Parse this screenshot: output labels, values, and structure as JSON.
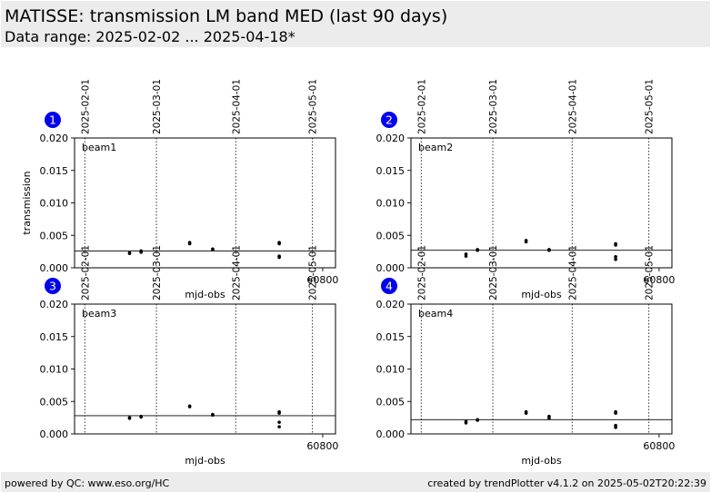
{
  "header": {
    "title": "MATISSE: transmission LM band MED (last 90 days)",
    "subtitle": "Data range: 2025-02-02 ... 2025-04-18*"
  },
  "footer": {
    "left": "powered by QC: www.eso.org/HC",
    "right": "created by trendPlotter v4.1.2 on 2025-05-02T20:22:39"
  },
  "colors": {
    "badge": "#0000ee",
    "panel_bg": "#ececec"
  },
  "chart_data": [
    {
      "type": "scatter",
      "badge": "1",
      "name": "beam1",
      "xlabel": "mjd-obs",
      "ylabel": "transmission",
      "xlim": [
        60703,
        60805
      ],
      "ylim": [
        0,
        0.02
      ],
      "yticks": [
        0,
        0.005,
        0.01,
        0.015,
        0.02
      ],
      "ytick_labels": [
        "0.000",
        "0.005",
        "0.010",
        "0.015",
        "0.020"
      ],
      "xticks": [
        60800
      ],
      "xtick_labels": [
        "60800"
      ],
      "date_marks": [
        {
          "x": 60707,
          "label": "2025-02-01"
        },
        {
          "x": 60735,
          "label": "2025-03-01"
        },
        {
          "x": 60766,
          "label": "2025-04-01"
        },
        {
          "x": 60796,
          "label": "2025-05-01"
        }
      ],
      "reference": 0.0026,
      "x": [
        60724.5,
        60724.5,
        60729,
        60729,
        60748,
        60748,
        60757,
        60757,
        60783,
        60783,
        60783,
        60783
      ],
      "y": [
        0.0022,
        0.0023,
        0.0024,
        0.0026,
        0.0037,
        0.0039,
        0.0028,
        0.0029,
        0.0037,
        0.0039,
        0.0016,
        0.0018
      ]
    },
    {
      "type": "scatter",
      "badge": "2",
      "name": "beam2",
      "xlabel": "mjd-obs",
      "ylabel": "",
      "xlim": [
        60703,
        60805
      ],
      "ylim": [
        0,
        0.02
      ],
      "yticks": [
        0,
        0.005,
        0.01,
        0.015,
        0.02
      ],
      "ytick_labels": [
        "0.000",
        "0.005",
        "0.010",
        "0.015",
        "0.020"
      ],
      "xticks": [
        60800
      ],
      "xtick_labels": [
        "60800"
      ],
      "date_marks": [
        {
          "x": 60707,
          "label": "2025-02-01"
        },
        {
          "x": 60735,
          "label": "2025-03-01"
        },
        {
          "x": 60766,
          "label": "2025-04-01"
        },
        {
          "x": 60796,
          "label": "2025-05-01"
        }
      ],
      "reference": 0.0027,
      "x": [
        60724.5,
        60724.5,
        60729,
        60729,
        60748,
        60748,
        60757,
        60757,
        60783,
        60783,
        60783,
        60783
      ],
      "y": [
        0.0018,
        0.0021,
        0.0027,
        0.0028,
        0.004,
        0.0042,
        0.0027,
        0.0028,
        0.0035,
        0.0037,
        0.0013,
        0.0017
      ]
    },
    {
      "type": "scatter",
      "badge": "3",
      "name": "beam3",
      "xlabel": "mjd-obs",
      "ylabel": "",
      "xlim": [
        60703,
        60805
      ],
      "ylim": [
        0,
        0.02
      ],
      "yticks": [
        0,
        0.005,
        0.01,
        0.015,
        0.02
      ],
      "ytick_labels": [
        "0.000",
        "0.005",
        "0.010",
        "0.015",
        "0.020"
      ],
      "xticks": [
        60800
      ],
      "xtick_labels": [
        "60800"
      ],
      "date_marks": [
        {
          "x": 60707,
          "label": "2025-02-01"
        },
        {
          "x": 60735,
          "label": "2025-03-01"
        },
        {
          "x": 60766,
          "label": "2025-04-01"
        },
        {
          "x": 60796,
          "label": "2025-05-01"
        }
      ],
      "reference": 0.0028,
      "x": [
        60724.5,
        60724.5,
        60729,
        60729,
        60748,
        60748,
        60757,
        60757,
        60783,
        60783,
        60783,
        60783
      ],
      "y": [
        0.0024,
        0.0025,
        0.0026,
        0.0027,
        0.0042,
        0.0043,
        0.0029,
        0.003,
        0.0032,
        0.0034,
        0.0011,
        0.0018
      ]
    },
    {
      "type": "scatter",
      "badge": "4",
      "name": "beam4",
      "xlabel": "mjd-obs",
      "ylabel": "",
      "xlim": [
        60703,
        60805
      ],
      "ylim": [
        0,
        0.02
      ],
      "yticks": [
        0,
        0.005,
        0.01,
        0.015,
        0.02
      ],
      "ytick_labels": [
        "0.000",
        "0.005",
        "0.010",
        "0.015",
        "0.020"
      ],
      "xticks": [
        60800
      ],
      "xtick_labels": [
        "60800"
      ],
      "date_marks": [
        {
          "x": 60707,
          "label": "2025-02-01"
        },
        {
          "x": 60735,
          "label": "2025-03-01"
        },
        {
          "x": 60766,
          "label": "2025-04-01"
        },
        {
          "x": 60796,
          "label": "2025-05-01"
        }
      ],
      "reference": 0.0022,
      "x": [
        60724.5,
        60724.5,
        60729,
        60729,
        60748,
        60748,
        60757,
        60757,
        60783,
        60783,
        60783,
        60783
      ],
      "y": [
        0.0017,
        0.0019,
        0.0021,
        0.0022,
        0.0032,
        0.0034,
        0.0024,
        0.0027,
        0.0032,
        0.0034,
        0.001,
        0.0013
      ]
    }
  ]
}
